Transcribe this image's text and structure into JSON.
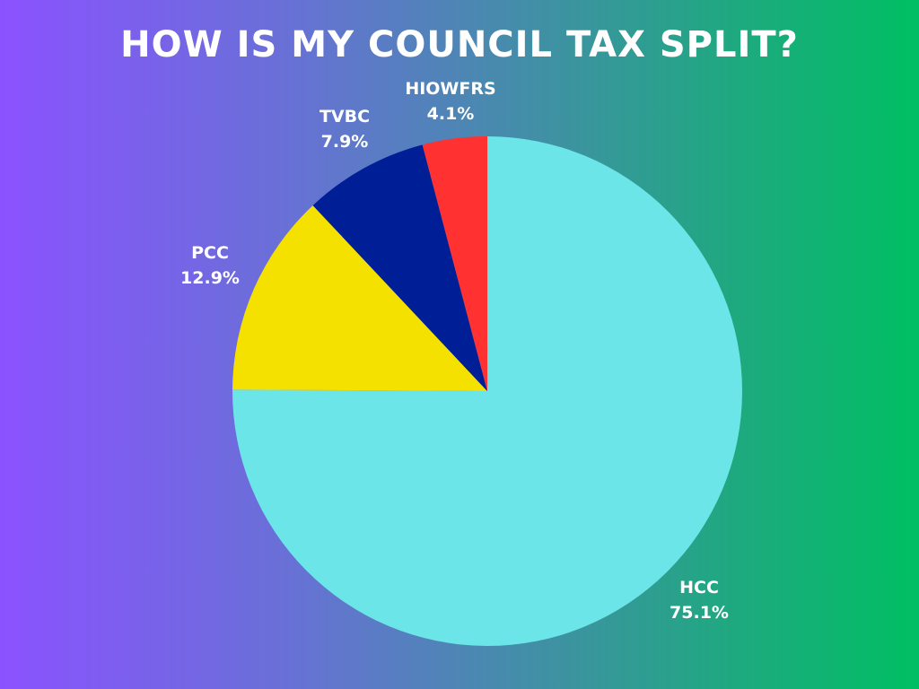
{
  "chart_data": {
    "type": "pie",
    "title": "HOW IS MY COUNCIL TAX SPLIT?",
    "slices": [
      {
        "label": "HCC",
        "value": 75.1,
        "display": "75.1%",
        "color": "#6ce5e8"
      },
      {
        "label": "PCC",
        "value": 12.9,
        "display": "12.9%",
        "color": "#f5e100"
      },
      {
        "label": "TVBC",
        "value": 7.9,
        "display": "7.9%",
        "color": "#001e96"
      },
      {
        "label": "HIOWFRS",
        "value": 4.1,
        "display": "4.1%",
        "color": "#ff3131"
      }
    ],
    "start_angle": "12 o'clock",
    "direction": "clockwise",
    "legend": "none"
  },
  "background": {
    "gradient_start": "#8b52ff",
    "gradient_end": "#00bf63"
  }
}
